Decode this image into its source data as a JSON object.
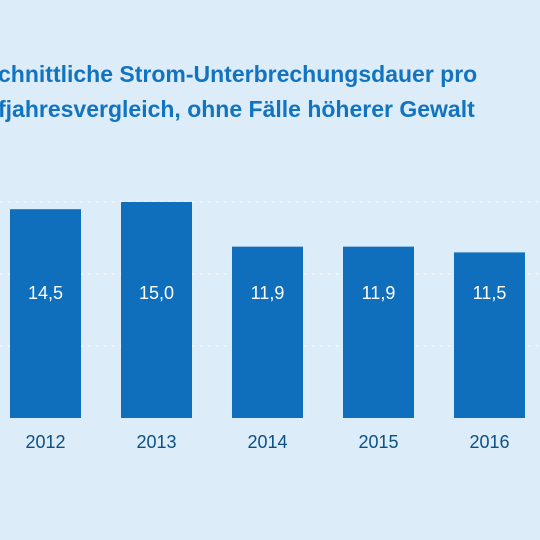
{
  "chart_data": {
    "type": "bar",
    "title_lines": [
      "chnittliche Strom-Unterbrechungsdauer pro",
      "fjahresvergleich, ohne Fälle höherer Gewalt"
    ],
    "categories": [
      "2012",
      "2013",
      "2014",
      "2015",
      "2016"
    ],
    "values": [
      14.5,
      15.0,
      11.9,
      11.9,
      11.5
    ],
    "value_labels": [
      "14,5",
      "15,0",
      "11,9",
      "11,9",
      "11,5"
    ],
    "ylim": [
      0,
      20
    ],
    "grid": true,
    "legend": "none",
    "colors": {
      "background": "#dcedf9",
      "bar": "#0f6fbd",
      "title": "#1274c0",
      "value_label": "#ffffff",
      "tick_label": "#0c4f86",
      "grid": "#ffffff"
    }
  }
}
